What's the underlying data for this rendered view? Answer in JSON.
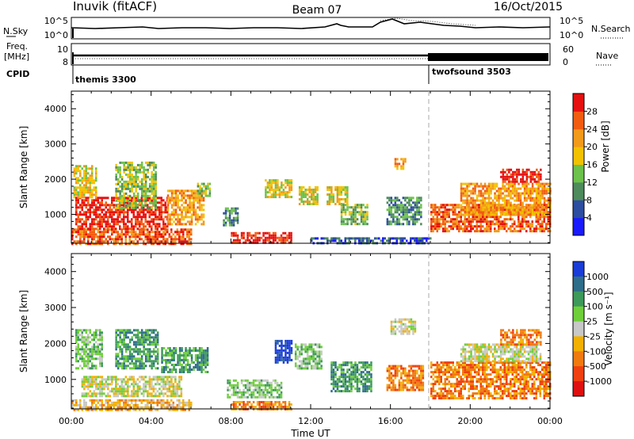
{
  "header": {
    "station": "Inuvik (fitACF)",
    "beam": "Beam 07",
    "date": "16/Oct/2015"
  },
  "status_panels": {
    "nsky_label": "N.Sky",
    "nsky_ticks": [
      "10^5",
      "10^0"
    ],
    "nsearch_label": "N.Search",
    "nsearch_ticks": [
      "10^5",
      "10^0"
    ],
    "freq_label": "Freq.",
    "freq_unit": "[MHz]",
    "freq_ticks": [
      "10",
      "8"
    ],
    "nave_label": "Nave",
    "nave_ticks": [
      "60",
      "0"
    ],
    "cpid_label": "CPID",
    "cpid_segments": [
      {
        "name": "themis 3300",
        "start_hour": 0
      },
      {
        "name": "twofsound 3503",
        "start_hour": 18
      }
    ]
  },
  "chart_data": [
    {
      "type": "heatmap",
      "name": "power",
      "ylabel": "Slant Range [km]",
      "y_ticks": [
        "1000",
        "2000",
        "3000",
        "4000"
      ],
      "y_tick_values": [
        1000,
        2000,
        3000,
        4000
      ],
      "ylim": [
        180,
        4500
      ],
      "x_ticks": [
        "00:00",
        "04:00",
        "08:00",
        "12:00",
        "16:00",
        "20:00",
        "00:00"
      ],
      "xlim_hours": [
        0,
        24
      ],
      "colorbar": {
        "label": "Power [dB]",
        "ticks": [
          "4",
          "8",
          "12",
          "16",
          "20",
          "24",
          "28"
        ],
        "colors": [
          "#1a1aff",
          "#2d4da0",
          "#4d8a5c",
          "#6cc24a",
          "#f2c200",
          "#f29a1a",
          "#f25c10",
          "#e61010"
        ]
      },
      "regions": [
        {
          "h0": 0.0,
          "h1": 6.0,
          "r0": 180,
          "r1": 600,
          "level": 6
        },
        {
          "h0": 0.2,
          "h1": 4.8,
          "r0": 600,
          "r1": 1500,
          "level": 7
        },
        {
          "h0": 0.1,
          "h1": 1.2,
          "r0": 1500,
          "r1": 2400,
          "level": 4
        },
        {
          "h0": 2.2,
          "h1": 4.2,
          "r0": 1200,
          "r1": 2500,
          "level": 3
        },
        {
          "h0": 4.8,
          "h1": 6.6,
          "r0": 700,
          "r1": 1700,
          "level": 5
        },
        {
          "h0": 6.3,
          "h1": 6.9,
          "r0": 1500,
          "r1": 1900,
          "level": 3
        },
        {
          "h0": 7.6,
          "h1": 8.3,
          "r0": 700,
          "r1": 1200,
          "level": 2
        },
        {
          "h0": 8.0,
          "h1": 11.0,
          "r0": 180,
          "r1": 500,
          "level": 7
        },
        {
          "h0": 9.7,
          "h1": 11.0,
          "r0": 1500,
          "r1": 2000,
          "level": 4
        },
        {
          "h0": 11.4,
          "h1": 12.3,
          "r0": 1300,
          "r1": 1800,
          "level": 4
        },
        {
          "h0": 12.8,
          "h1": 13.8,
          "r0": 1300,
          "r1": 1800,
          "level": 4
        },
        {
          "h0": 13.5,
          "h1": 14.8,
          "r0": 700,
          "r1": 1300,
          "level": 3
        },
        {
          "h0": 15.8,
          "h1": 17.5,
          "r0": 700,
          "r1": 1500,
          "level": 2
        },
        {
          "h0": 16.1,
          "h1": 16.7,
          "r0": 2300,
          "r1": 2600,
          "level": 5
        },
        {
          "h0": 18.0,
          "h1": 24.0,
          "r0": 500,
          "r1": 1300,
          "level": 6
        },
        {
          "h0": 19.5,
          "h1": 24.0,
          "r0": 1000,
          "r1": 1900,
          "level": 5
        },
        {
          "h0": 21.5,
          "h1": 23.5,
          "r0": 1900,
          "r1": 2300,
          "level": 7
        },
        {
          "h0": 12.0,
          "h1": 18.0,
          "r0": 180,
          "r1": 350,
          "level": 1
        }
      ]
    },
    {
      "type": "heatmap",
      "name": "velocity",
      "ylabel": "Slant Range [km]",
      "y_ticks": [
        "1000",
        "2000",
        "3000",
        "4000"
      ],
      "y_tick_values": [
        1000,
        2000,
        3000,
        4000
      ],
      "ylim": [
        180,
        4500
      ],
      "x_ticks": [
        "00:00",
        "04:00",
        "08:00",
        "12:00",
        "16:00",
        "20:00",
        "00:00"
      ],
      "xlim_hours": [
        0,
        24
      ],
      "xlabel": "Time UT",
      "colorbar": {
        "label": "Velocity [m s⁻¹]",
        "ticks": [
          "1000",
          "500",
          "100",
          "25",
          "-25",
          "-100",
          "-500",
          "-1000"
        ],
        "colors": [
          "#1a3cd8",
          "#2e6e8a",
          "#3d9a5a",
          "#6fcf3a",
          "#c8c8c8",
          "#f2b000",
          "#f07a10",
          "#f04010",
          "#e01010"
        ]
      },
      "regions": [
        {
          "h0": 0.0,
          "h1": 6.0,
          "r0": 180,
          "r1": 450,
          "level": 5
        },
        {
          "h0": 0.5,
          "h1": 5.5,
          "r0": 550,
          "r1": 1100,
          "level": 4
        },
        {
          "h0": 0.2,
          "h1": 1.5,
          "r0": 1300,
          "r1": 2400,
          "level": 3
        },
        {
          "h0": 2.2,
          "h1": 4.3,
          "r0": 1300,
          "r1": 2400,
          "level": 2
        },
        {
          "h0": 4.5,
          "h1": 6.8,
          "r0": 1200,
          "r1": 1900,
          "level": 2
        },
        {
          "h0": 7.8,
          "h1": 10.5,
          "r0": 500,
          "r1": 1000,
          "level": 3
        },
        {
          "h0": 10.2,
          "h1": 11.0,
          "r0": 1500,
          "r1": 2100,
          "level": 0
        },
        {
          "h0": 11.2,
          "h1": 12.5,
          "r0": 1300,
          "r1": 2000,
          "level": 3
        },
        {
          "h0": 13.0,
          "h1": 15.0,
          "r0": 700,
          "r1": 1500,
          "level": 2
        },
        {
          "h0": 16.0,
          "h1": 17.2,
          "r0": 2300,
          "r1": 2700,
          "level": 4
        },
        {
          "h0": 15.8,
          "h1": 17.6,
          "r0": 700,
          "r1": 1400,
          "level": 6
        },
        {
          "h0": 18.0,
          "h1": 24.0,
          "r0": 500,
          "r1": 1500,
          "level": 6
        },
        {
          "h0": 19.5,
          "h1": 23.5,
          "r0": 1500,
          "r1": 2000,
          "level": 4
        },
        {
          "h0": 21.5,
          "h1": 23.5,
          "r0": 2000,
          "r1": 2400,
          "level": 6
        },
        {
          "h0": 8.0,
          "h1": 11.0,
          "r0": 180,
          "r1": 400,
          "level": 6
        }
      ]
    }
  ]
}
